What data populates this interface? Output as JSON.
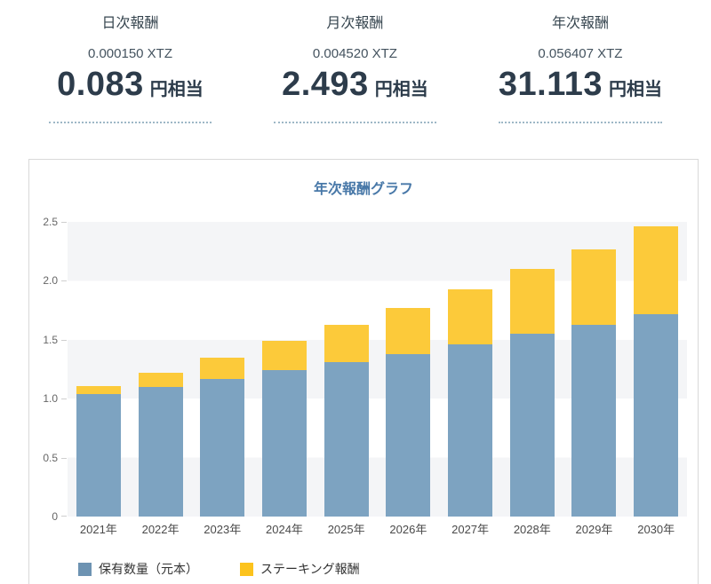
{
  "stats": {
    "cards": [
      {
        "title": "日次報酬",
        "xtz": "0.000150 XTZ",
        "jpy": "0.083",
        "unit": "円相当"
      },
      {
        "title": "月次報酬",
        "xtz": "0.004520 XTZ",
        "jpy": "2.493",
        "unit": "円相当"
      },
      {
        "title": "年次報酬",
        "xtz": "0.056407 XTZ",
        "jpy": "31.113",
        "unit": "円相当"
      }
    ]
  },
  "chart_data": {
    "type": "bar",
    "stacked": true,
    "title": "年次報酬グラフ",
    "categories": [
      "2021年",
      "2022年",
      "2023年",
      "2024年",
      "2025年",
      "2026年",
      "2027年",
      "2028年",
      "2029年",
      "2030年"
    ],
    "series": [
      {
        "name": "保有数量（元本）",
        "color": "#7da3c1",
        "legend_color": "#6d93b2",
        "values": [
          1.04,
          1.1,
          1.17,
          1.24,
          1.31,
          1.38,
          1.46,
          1.55,
          1.63,
          1.72
        ]
      },
      {
        "name": "ステーキング報酬",
        "color": "#fcca3a",
        "legend_color": "#fcc31d",
        "values": [
          0.07,
          0.12,
          0.18,
          0.25,
          0.32,
          0.39,
          0.47,
          0.55,
          0.64,
          0.74
        ]
      }
    ],
    "totals": [
      1.11,
      1.22,
      1.35,
      1.49,
      1.63,
      1.77,
      1.93,
      2.1,
      2.27,
      2.46
    ],
    "xlabel": "",
    "ylabel": "",
    "ylim": [
      0,
      2.5
    ],
    "yticks": [
      0,
      0.5,
      1,
      1.5,
      2,
      2.5
    ],
    "ytick_labels": [
      "0",
      "0.5",
      "1.0",
      "1.5",
      "2.0",
      "2.5"
    ],
    "grid": "alternating-horizontal-bands",
    "band_color": "#f4f5f7",
    "legend_position": "bottom-left"
  }
}
